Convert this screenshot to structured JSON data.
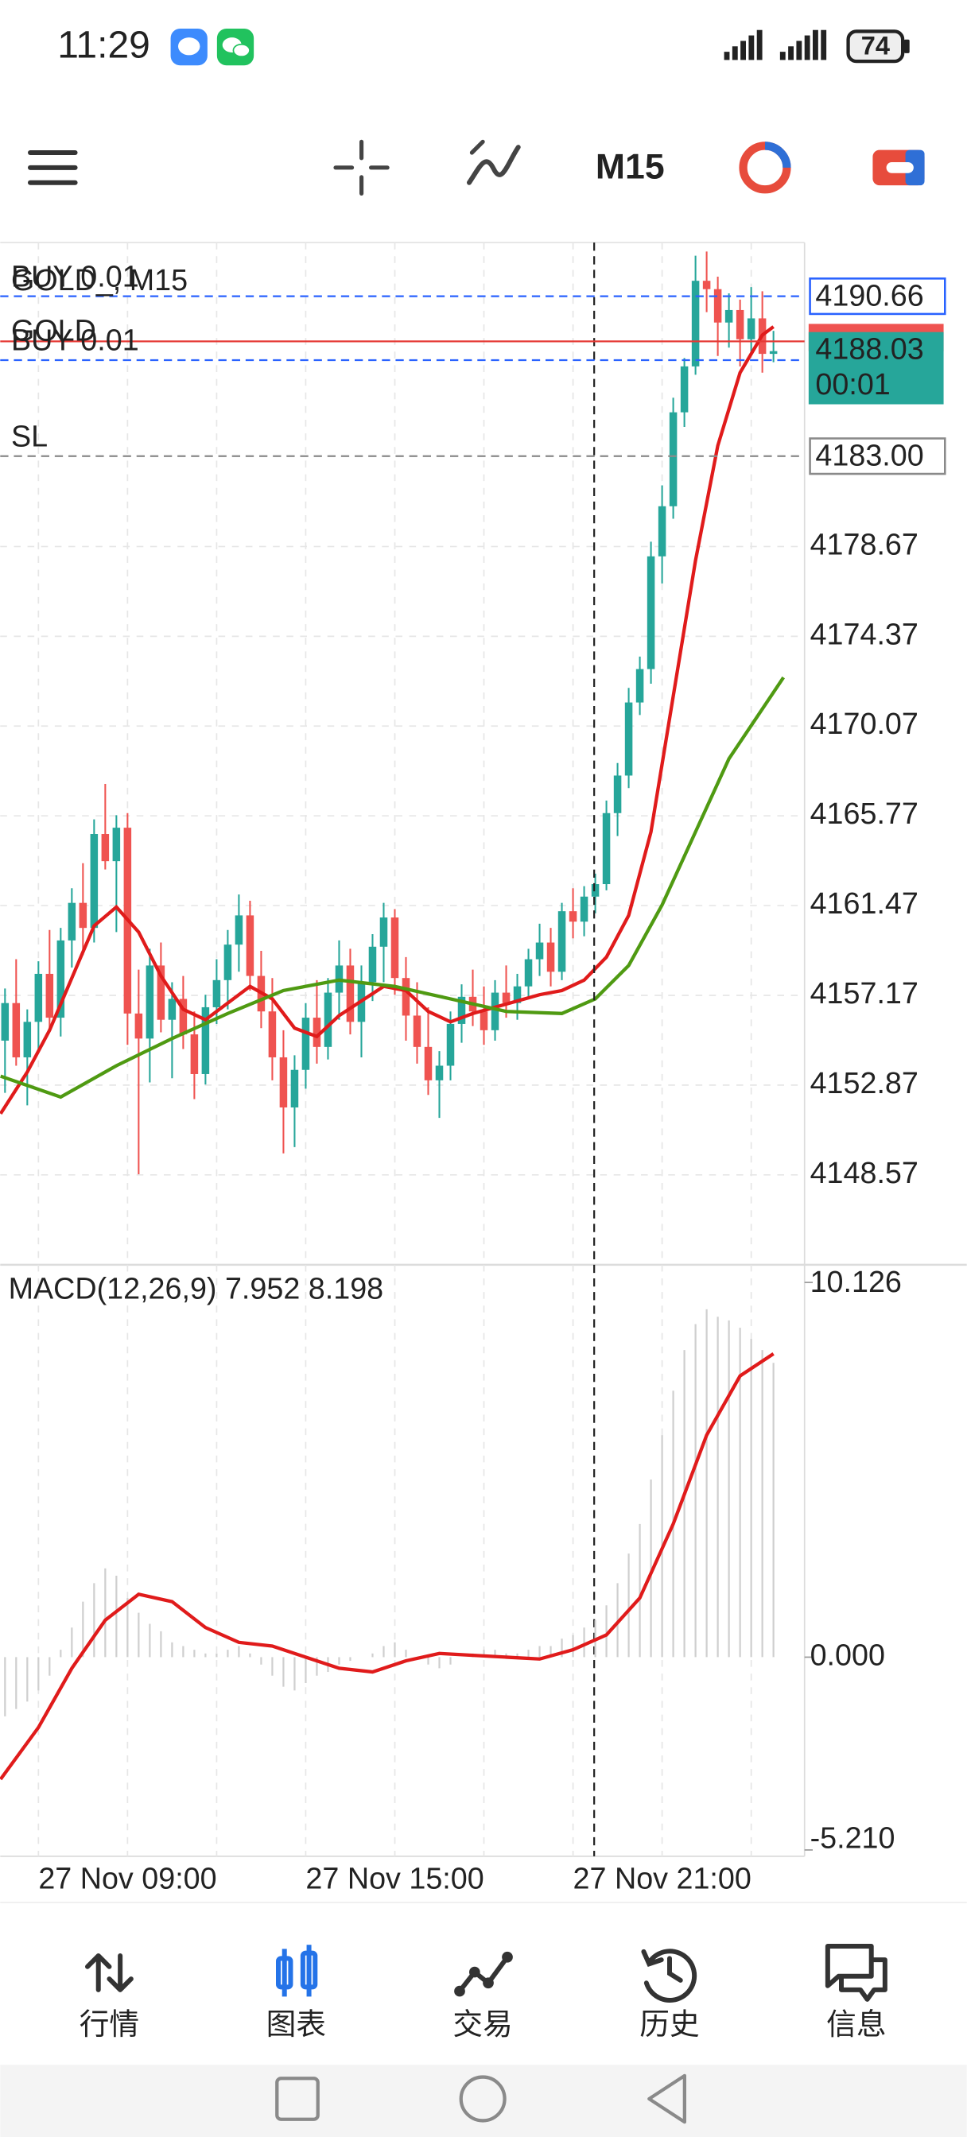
{
  "status_bar": {
    "time": "11:29",
    "battery": "74"
  },
  "toolbar": {
    "timeframe": "M15"
  },
  "chart_data": [
    {
      "type": "candlestick",
      "title": "GOLD_, M15",
      "symbol": "GOLD",
      "up_color": "#26a69a",
      "down_color": "#ef5350",
      "xlim": [
        -0.43,
        71.79
      ],
      "ylim": [
        4144.46,
        4193.23
      ],
      "yticks": [
        4148.57,
        4152.87,
        4157.17,
        4161.47,
        4165.77,
        4170.07,
        4174.37,
        4178.67
      ],
      "xticks": [
        {
          "value": 3,
          "label": "27 Nov 09:00"
        },
        {
          "value": 27,
          "label": "27 Nov 15:00"
        },
        {
          "value": 51,
          "label": "27 Nov 21:00"
        }
      ],
      "xgrid": [
        11,
        19,
        35,
        43,
        59,
        67
      ],
      "grid": true,
      "crosshair_x": 52.9,
      "candles": [
        [
          4155.0,
          4157.5,
          4152.5,
          4156.8
        ],
        [
          4156.8,
          4158.9,
          4153.8,
          4154.2
        ],
        [
          4154.2,
          4156.5,
          4151.9,
          4155.9
        ],
        [
          4155.9,
          4158.8,
          4154.6,
          4158.2
        ],
        [
          4158.2,
          4160.3,
          4155.5,
          4156.1
        ],
        [
          4156.1,
          4160.4,
          4155.2,
          4159.8
        ],
        [
          4159.8,
          4162.3,
          4158.5,
          4161.6
        ],
        [
          4161.6,
          4163.5,
          4159.1,
          4160.4
        ],
        [
          4160.4,
          4165.6,
          4159.7,
          4164.9
        ],
        [
          4164.9,
          4167.3,
          4163.2,
          4163.6
        ],
        [
          4163.6,
          4165.8,
          4160.2,
          4165.2
        ],
        [
          4165.2,
          4165.9,
          4154.8,
          4156.3
        ],
        [
          4156.3,
          4158.4,
          4148.6,
          4155.1
        ],
        [
          4155.1,
          4159.4,
          4153.0,
          4158.6
        ],
        [
          4158.6,
          4159.7,
          4155.4,
          4156.0
        ],
        [
          4156.0,
          4157.8,
          4153.2,
          4157.0
        ],
        [
          4157.0,
          4158.1,
          4154.6,
          4155.3
        ],
        [
          4155.3,
          4156.4,
          4152.2,
          4153.4
        ],
        [
          4153.4,
          4157.2,
          4152.9,
          4156.6
        ],
        [
          4156.6,
          4158.9,
          4155.8,
          4157.9
        ],
        [
          4157.9,
          4160.3,
          4156.5,
          4159.6
        ],
        [
          4159.6,
          4162.0,
          4158.3,
          4161.0
        ],
        [
          4161.0,
          4161.7,
          4157.4,
          4158.1
        ],
        [
          4158.1,
          4159.3,
          4155.6,
          4156.4
        ],
        [
          4156.4,
          4158.0,
          4153.1,
          4154.2
        ],
        [
          4154.2,
          4155.5,
          4149.6,
          4151.8
        ],
        [
          4151.8,
          4154.3,
          4149.9,
          4153.6
        ],
        [
          4153.6,
          4156.8,
          4152.7,
          4156.1
        ],
        [
          4156.1,
          4157.9,
          4153.9,
          4154.7
        ],
        [
          4154.7,
          4158.0,
          4154.1,
          4157.3
        ],
        [
          4157.3,
          4159.8,
          4156.0,
          4158.6
        ],
        [
          4158.6,
          4159.4,
          4155.3,
          4155.9
        ],
        [
          4155.9,
          4158.6,
          4154.2,
          4157.8
        ],
        [
          4157.8,
          4160.1,
          4156.9,
          4159.5
        ],
        [
          4159.5,
          4161.6,
          4157.8,
          4160.9
        ],
        [
          4160.9,
          4161.3,
          4157.2,
          4158.0
        ],
        [
          4158.0,
          4159.0,
          4155.0,
          4156.2
        ],
        [
          4156.2,
          4157.8,
          4153.9,
          4154.7
        ],
        [
          4154.7,
          4156.6,
          4152.4,
          4153.1
        ],
        [
          4153.1,
          4154.5,
          4151.3,
          4153.8
        ],
        [
          4153.8,
          4156.4,
          4153.1,
          4155.8
        ],
        [
          4155.8,
          4157.7,
          4154.9,
          4157.1
        ],
        [
          4157.1,
          4158.4,
          4155.7,
          4156.4
        ],
        [
          4156.4,
          4157.6,
          4154.8,
          4155.5
        ],
        [
          4155.5,
          4157.9,
          4155.0,
          4157.3
        ],
        [
          4157.3,
          4158.6,
          4156.1,
          4156.8
        ],
        [
          4156.8,
          4158.2,
          4156.0,
          4157.6
        ],
        [
          4157.6,
          4159.4,
          4157.0,
          4158.9
        ],
        [
          4158.9,
          4160.6,
          4158.1,
          4159.7
        ],
        [
          4159.7,
          4160.4,
          4157.6,
          4158.3
        ],
        [
          4158.3,
          4161.6,
          4157.9,
          4161.2
        ],
        [
          4161.2,
          4162.3,
          4159.9,
          4160.7
        ],
        [
          4160.7,
          4162.4,
          4160.0,
          4161.9
        ],
        [
          4161.9,
          4163.0,
          4161.1,
          4162.5
        ],
        [
          4162.5,
          4166.5,
          4162.2,
          4165.9
        ],
        [
          4165.9,
          4168.3,
          4164.8,
          4167.7
        ],
        [
          4167.7,
          4171.9,
          4167.1,
          4171.2
        ],
        [
          4171.2,
          4173.4,
          4170.6,
          4172.8
        ],
        [
          4172.8,
          4178.9,
          4172.1,
          4178.2
        ],
        [
          4178.2,
          4181.6,
          4176.9,
          4180.6
        ],
        [
          4180.6,
          4185.8,
          4180.0,
          4185.1
        ],
        [
          4185.1,
          4187.7,
          4184.4,
          4187.3
        ],
        [
          4187.3,
          4192.6,
          4186.9,
          4191.4
        ],
        [
          4191.4,
          4192.8,
          4189.9,
          4191.0
        ],
        [
          4191.0,
          4191.6,
          4187.8,
          4189.4
        ],
        [
          4189.4,
          4190.8,
          4188.2,
          4190.0
        ],
        [
          4190.0,
          4190.5,
          4187.3,
          4188.6
        ],
        [
          4188.6,
          4191.1,
          4187.9,
          4189.6
        ],
        [
          4189.6,
          4190.9,
          4187.0,
          4187.9
        ],
        [
          4187.9,
          4189.0,
          4187.5,
          4188.03
        ]
      ],
      "series": [
        {
          "color": "#e01b1b",
          "x": [
            -0.4,
            2,
            4,
            6,
            8,
            10,
            12,
            14,
            16,
            18,
            20,
            22,
            24,
            26,
            28,
            30,
            32,
            34,
            36,
            38,
            40,
            42,
            44,
            46,
            48,
            50,
            52,
            54,
            56,
            58,
            60,
            62,
            64,
            66,
            68,
            69
          ],
          "values": [
            4151.5,
            4153.5,
            4155.5,
            4158.0,
            4160.5,
            4161.4,
            4160.2,
            4158.1,
            4156.5,
            4156.0,
            4156.8,
            4157.6,
            4157.0,
            4155.6,
            4155.2,
            4156.2,
            4156.9,
            4157.6,
            4157.4,
            4156.4,
            4155.9,
            4156.3,
            4156.6,
            4156.9,
            4157.2,
            4157.4,
            4157.9,
            4159.0,
            4161.0,
            4165.0,
            4171.5,
            4178.0,
            4183.5,
            4187.0,
            4188.8,
            4189.2
          ]
        },
        {
          "color": "#4f9a12",
          "x": [
            -0.4,
            5,
            10,
            15,
            20,
            25,
            30,
            35,
            40,
            45,
            50,
            53,
            56,
            59,
            62,
            65,
            69.9
          ],
          "values": [
            4153.3,
            4152.3,
            4153.8,
            4155.1,
            4156.3,
            4157.4,
            4157.9,
            4157.6,
            4157.0,
            4156.4,
            4156.3,
            4157.0,
            4158.6,
            4161.5,
            4165.0,
            4168.5,
            4172.4
          ]
        }
      ],
      "price_lines": [
        {
          "text": "BUY 0.01",
          "price": 4190.66,
          "color": "#2962ff",
          "dash": true,
          "tag": true
        },
        {
          "price": 4188.5,
          "color": "#e53935",
          "dash": false,
          "tag": false
        },
        {
          "text": "BUY 0.01",
          "price": 4187.6,
          "color": "#2962ff",
          "dash": true,
          "tag": false
        },
        {
          "text": "SL",
          "price": {
            "value": 4183,
            "label": "4183.00"
          },
          "color": "#8a8a8a",
          "dash": true,
          "tag": true
        }
      ],
      "last_price": {
        "price": 4188.03,
        "countdown": "00:01",
        "color": "#26a69a"
      }
    },
    {
      "type": "macd",
      "title": "MACD(12,26,9) 7.952 8.198",
      "ylim": [
        -5.38,
        10.53
      ],
      "yticks": [
        {
          "value": -5.21,
          "label": "-5.210"
        },
        {
          "value": 0,
          "label": "0.000"
        },
        {
          "value": 10.126,
          "label": "10.126"
        }
      ],
      "histogram_color": "#cfcfcf",
      "histogram": [
        -1.6,
        -1.4,
        -1.2,
        -0.9,
        -0.5,
        0.2,
        0.8,
        1.5,
        2.0,
        2.4,
        2.2,
        1.6,
        1.2,
        0.9,
        0.7,
        0.4,
        0.3,
        0.2,
        0.1,
        0.1,
        0.2,
        0.3,
        0.1,
        -0.2,
        -0.5,
        -0.8,
        -0.9,
        -0.7,
        -0.5,
        -0.4,
        -0.2,
        -0.1,
        0.0,
        0.1,
        0.3,
        0.4,
        0.2,
        0.0,
        -0.2,
        -0.3,
        -0.2,
        0.0,
        0.1,
        0.2,
        0.2,
        0.1,
        0.1,
        0.2,
        0.3,
        0.3,
        0.5,
        0.6,
        0.8,
        1.0,
        1.4,
        2.0,
        2.8,
        3.6,
        4.8,
        6.0,
        7.2,
        8.3,
        9.0,
        9.4,
        9.2,
        9.1,
        8.9,
        8.6,
        8.3,
        7.952
      ],
      "signal": {
        "color": "#e01b1b",
        "x": [
          -0.4,
          3,
          6,
          9,
          12,
          15,
          18,
          21,
          24,
          27,
          30,
          33,
          36,
          39,
          42,
          45,
          48,
          51,
          54,
          57,
          60,
          63,
          66,
          69
        ],
        "values": [
          -3.3,
          -1.9,
          -0.3,
          1.0,
          1.7,
          1.5,
          0.8,
          0.4,
          0.3,
          0.0,
          -0.3,
          -0.4,
          -0.1,
          0.1,
          0.05,
          0.0,
          -0.05,
          0.2,
          0.6,
          1.6,
          3.6,
          6.0,
          7.6,
          8.198
        ]
      }
    }
  ],
  "bottom_nav": {
    "items": [
      "行情",
      "图表",
      "交易",
      "历史",
      "信息"
    ],
    "active": 1,
    "active_color": "#2473e8"
  }
}
